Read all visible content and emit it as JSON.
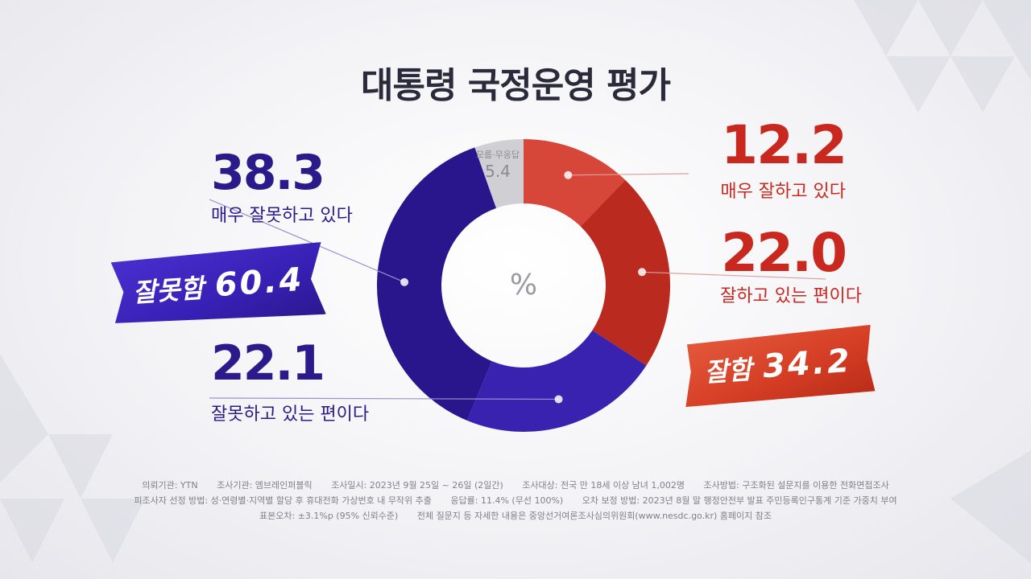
{
  "title": "대통령 국정운영 평가",
  "center_label": "%",
  "chart_data": {
    "type": "pie",
    "title": "대통령 국정운영 평가",
    "unit": "%",
    "slices": [
      {
        "label": "매우 잘하고 있다",
        "value": 12.2,
        "color": "#d6473a"
      },
      {
        "label": "잘하고 있는 편이다",
        "value": 22.0,
        "color": "#bb2a1e"
      },
      {
        "label": "잘못하고 있는 편이다",
        "value": 22.1,
        "color": "#3a22b0"
      },
      {
        "label": "매우 잘못하고 있다",
        "value": 38.3,
        "color": "#2a168c"
      },
      {
        "label": "모름·무응답",
        "value": 5.4,
        "color": "#d0d0d4"
      }
    ]
  },
  "labels": {
    "very_bad": {
      "value": "38.3",
      "text": "매우 잘못하고 있다"
    },
    "bad": {
      "value": "22.1",
      "text": "잘못하고 있는 편이다"
    },
    "very_good": {
      "value": "12.2",
      "text": "매우 잘하고 있다"
    },
    "good": {
      "value": "22.0",
      "text": "잘하고 있는 편이다"
    },
    "unknown": {
      "value": "5.4",
      "text": "모름·무응답"
    }
  },
  "ribbons": {
    "bad": {
      "key": "잘못함",
      "value": "60.4",
      "color": "#3a22b8"
    },
    "good": {
      "key": "잘함",
      "value": "34.2",
      "color": "#d43d24"
    }
  },
  "footer": {
    "line1": [
      "의뢰기관: YTN",
      "조사기관: 엠브레인퍼블릭",
      "조사일시: 2023년 9월 25일 ~ 26일 (2일간)",
      "조사대상: 전국 만 18세 이상 남녀 1,002명",
      "조사방법: 구조화된 설문지를 이용한 전화면접조사"
    ],
    "line2": [
      "피조사자 선정 방법: 성·연령별·지역별 할당 후 휴대전화 가상번호 내 무작위 추출",
      "응답률: 11.4% (무선 100%)",
      "오차 보정 방법: 2023년 8월 말 행정안전부 발표 주민등록인구통계 기준 가중치 부여"
    ],
    "line3": [
      "표본오차: ±3.1%p (95% 신뢰수준)",
      "전체 질문지 등 자세한 내용은 중앙선거여론조사심의위원회(www.nesdc.go.kr) 홈페이지 참조"
    ]
  }
}
